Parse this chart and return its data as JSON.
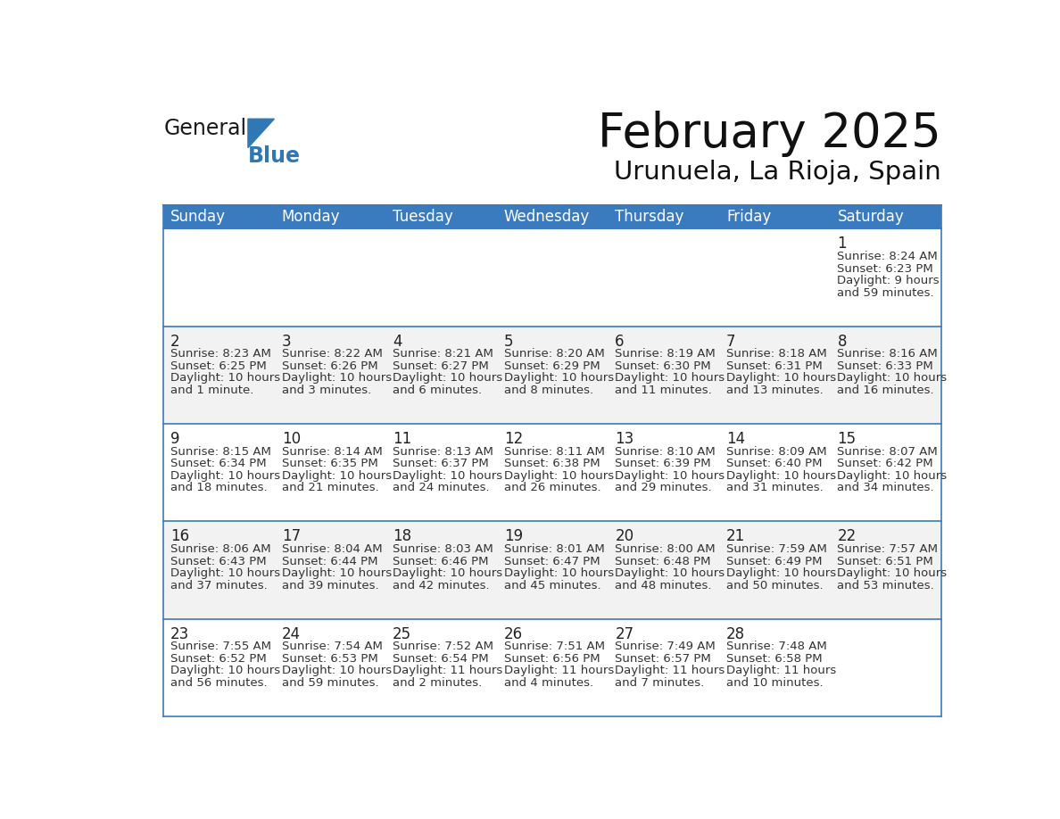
{
  "title": "February 2025",
  "subtitle": "Urunuela, La Rioja, Spain",
  "header_bg": "#3a7abf",
  "header_text_color": "#ffffff",
  "cell_bg_white": "#ffffff",
  "cell_bg_gray": "#f2f2f2",
  "border_color": "#3a7abf",
  "border_color_light": "#b0c4de",
  "day_names": [
    "Sunday",
    "Monday",
    "Tuesday",
    "Wednesday",
    "Thursday",
    "Friday",
    "Saturday"
  ],
  "days": [
    {
      "day": 1,
      "col": 6,
      "row": 0,
      "sunrise": "8:24 AM",
      "sunset": "6:23 PM",
      "daylight_line1": "Daylight: 9 hours",
      "daylight_line2": "and 59 minutes."
    },
    {
      "day": 2,
      "col": 0,
      "row": 1,
      "sunrise": "8:23 AM",
      "sunset": "6:25 PM",
      "daylight_line1": "Daylight: 10 hours",
      "daylight_line2": "and 1 minute."
    },
    {
      "day": 3,
      "col": 1,
      "row": 1,
      "sunrise": "8:22 AM",
      "sunset": "6:26 PM",
      "daylight_line1": "Daylight: 10 hours",
      "daylight_line2": "and 3 minutes."
    },
    {
      "day": 4,
      "col": 2,
      "row": 1,
      "sunrise": "8:21 AM",
      "sunset": "6:27 PM",
      "daylight_line1": "Daylight: 10 hours",
      "daylight_line2": "and 6 minutes."
    },
    {
      "day": 5,
      "col": 3,
      "row": 1,
      "sunrise": "8:20 AM",
      "sunset": "6:29 PM",
      "daylight_line1": "Daylight: 10 hours",
      "daylight_line2": "and 8 minutes."
    },
    {
      "day": 6,
      "col": 4,
      "row": 1,
      "sunrise": "8:19 AM",
      "sunset": "6:30 PM",
      "daylight_line1": "Daylight: 10 hours",
      "daylight_line2": "and 11 minutes."
    },
    {
      "day": 7,
      "col": 5,
      "row": 1,
      "sunrise": "8:18 AM",
      "sunset": "6:31 PM",
      "daylight_line1": "Daylight: 10 hours",
      "daylight_line2": "and 13 minutes."
    },
    {
      "day": 8,
      "col": 6,
      "row": 1,
      "sunrise": "8:16 AM",
      "sunset": "6:33 PM",
      "daylight_line1": "Daylight: 10 hours",
      "daylight_line2": "and 16 minutes."
    },
    {
      "day": 9,
      "col": 0,
      "row": 2,
      "sunrise": "8:15 AM",
      "sunset": "6:34 PM",
      "daylight_line1": "Daylight: 10 hours",
      "daylight_line2": "and 18 minutes."
    },
    {
      "day": 10,
      "col": 1,
      "row": 2,
      "sunrise": "8:14 AM",
      "sunset": "6:35 PM",
      "daylight_line1": "Daylight: 10 hours",
      "daylight_line2": "and 21 minutes."
    },
    {
      "day": 11,
      "col": 2,
      "row": 2,
      "sunrise": "8:13 AM",
      "sunset": "6:37 PM",
      "daylight_line1": "Daylight: 10 hours",
      "daylight_line2": "and 24 minutes."
    },
    {
      "day": 12,
      "col": 3,
      "row": 2,
      "sunrise": "8:11 AM",
      "sunset": "6:38 PM",
      "daylight_line1": "Daylight: 10 hours",
      "daylight_line2": "and 26 minutes."
    },
    {
      "day": 13,
      "col": 4,
      "row": 2,
      "sunrise": "8:10 AM",
      "sunset": "6:39 PM",
      "daylight_line1": "Daylight: 10 hours",
      "daylight_line2": "and 29 minutes."
    },
    {
      "day": 14,
      "col": 5,
      "row": 2,
      "sunrise": "8:09 AM",
      "sunset": "6:40 PM",
      "daylight_line1": "Daylight: 10 hours",
      "daylight_line2": "and 31 minutes."
    },
    {
      "day": 15,
      "col": 6,
      "row": 2,
      "sunrise": "8:07 AM",
      "sunset": "6:42 PM",
      "daylight_line1": "Daylight: 10 hours",
      "daylight_line2": "and 34 minutes."
    },
    {
      "day": 16,
      "col": 0,
      "row": 3,
      "sunrise": "8:06 AM",
      "sunset": "6:43 PM",
      "daylight_line1": "Daylight: 10 hours",
      "daylight_line2": "and 37 minutes."
    },
    {
      "day": 17,
      "col": 1,
      "row": 3,
      "sunrise": "8:04 AM",
      "sunset": "6:44 PM",
      "daylight_line1": "Daylight: 10 hours",
      "daylight_line2": "and 39 minutes."
    },
    {
      "day": 18,
      "col": 2,
      "row": 3,
      "sunrise": "8:03 AM",
      "sunset": "6:46 PM",
      "daylight_line1": "Daylight: 10 hours",
      "daylight_line2": "and 42 minutes."
    },
    {
      "day": 19,
      "col": 3,
      "row": 3,
      "sunrise": "8:01 AM",
      "sunset": "6:47 PM",
      "daylight_line1": "Daylight: 10 hours",
      "daylight_line2": "and 45 minutes."
    },
    {
      "day": 20,
      "col": 4,
      "row": 3,
      "sunrise": "8:00 AM",
      "sunset": "6:48 PM",
      "daylight_line1": "Daylight: 10 hours",
      "daylight_line2": "and 48 minutes."
    },
    {
      "day": 21,
      "col": 5,
      "row": 3,
      "sunrise": "7:59 AM",
      "sunset": "6:49 PM",
      "daylight_line1": "Daylight: 10 hours",
      "daylight_line2": "and 50 minutes."
    },
    {
      "day": 22,
      "col": 6,
      "row": 3,
      "sunrise": "7:57 AM",
      "sunset": "6:51 PM",
      "daylight_line1": "Daylight: 10 hours",
      "daylight_line2": "and 53 minutes."
    },
    {
      "day": 23,
      "col": 0,
      "row": 4,
      "sunrise": "7:55 AM",
      "sunset": "6:52 PM",
      "daylight_line1": "Daylight: 10 hours",
      "daylight_line2": "and 56 minutes."
    },
    {
      "day": 24,
      "col": 1,
      "row": 4,
      "sunrise": "7:54 AM",
      "sunset": "6:53 PM",
      "daylight_line1": "Daylight: 10 hours",
      "daylight_line2": "and 59 minutes."
    },
    {
      "day": 25,
      "col": 2,
      "row": 4,
      "sunrise": "7:52 AM",
      "sunset": "6:54 PM",
      "daylight_line1": "Daylight: 11 hours",
      "daylight_line2": "and 2 minutes."
    },
    {
      "day": 26,
      "col": 3,
      "row": 4,
      "sunrise": "7:51 AM",
      "sunset": "6:56 PM",
      "daylight_line1": "Daylight: 11 hours",
      "daylight_line2": "and 4 minutes."
    },
    {
      "day": 27,
      "col": 4,
      "row": 4,
      "sunrise": "7:49 AM",
      "sunset": "6:57 PM",
      "daylight_line1": "Daylight: 11 hours",
      "daylight_line2": "and 7 minutes."
    },
    {
      "day": 28,
      "col": 5,
      "row": 4,
      "sunrise": "7:48 AM",
      "sunset": "6:58 PM",
      "daylight_line1": "Daylight: 11 hours",
      "daylight_line2": "and 10 minutes."
    }
  ],
  "num_rows": 5,
  "num_cols": 7,
  "bg_color": "#ffffff",
  "title_fontsize": 38,
  "subtitle_fontsize": 21,
  "header_fontsize": 12,
  "day_num_fontsize": 12,
  "cell_text_fontsize": 9.5,
  "logo_general_color": "#1a1a1a",
  "logo_blue_color": "#2e79b5"
}
